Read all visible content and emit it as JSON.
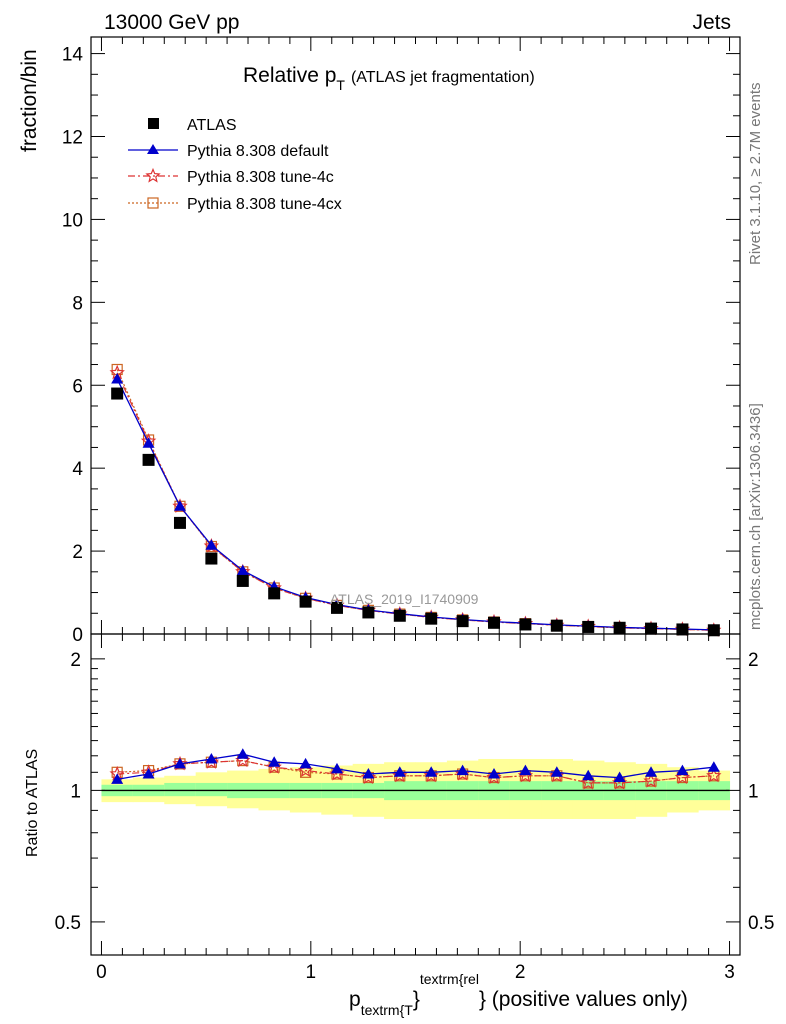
{
  "header": {
    "left": "13000 GeV pp",
    "right": "Jets"
  },
  "side_text": {
    "rivet": "Rivet 3.1.10, ≥ 2.7M events",
    "mcplots": "mcplots.cern.ch [arXiv:1306.3436]"
  },
  "watermark": "ATLAS_2019_I1740909",
  "colors": {
    "atlas": "#000000",
    "default": "#0000cc",
    "tune4c": "#dd3333",
    "tune4cx": "#cc6622",
    "band_inner": "#99ff99",
    "band_outer": "#ffff99"
  },
  "chart_data": [
    {
      "type": "scatter",
      "title": "Relative p",
      "title_sub": "T",
      "title_suffix": "(ATLAS jet fragmentation)",
      "ylabel": "fraction/bin",
      "xlim": [
        -0.05,
        3.05
      ],
      "ylim": [
        0,
        14.4
      ],
      "yticks": [
        0,
        2,
        4,
        6,
        8,
        10,
        12,
        14
      ],
      "ytick_labels": [
        "0",
        "2",
        "4",
        "6",
        "8",
        "10",
        "12",
        "14"
      ],
      "legend_position": "top-left",
      "x": [
        0.075,
        0.225,
        0.375,
        0.525,
        0.675,
        0.825,
        0.975,
        1.125,
        1.275,
        1.425,
        1.575,
        1.725,
        1.875,
        2.025,
        2.175,
        2.325,
        2.475,
        2.625,
        2.775,
        2.925
      ],
      "series": [
        {
          "name": "ATLAS",
          "marker": "square",
          "values": [
            5.8,
            4.2,
            2.68,
            1.82,
            1.28,
            0.98,
            0.78,
            0.63,
            0.52,
            0.44,
            0.37,
            0.31,
            0.27,
            0.23,
            0.2,
            0.17,
            0.15,
            0.13,
            0.11,
            0.09
          ]
        },
        {
          "name": "Pythia 8.308 default",
          "marker": "triangle",
          "values": [
            6.15,
            4.6,
            3.08,
            2.14,
            1.53,
            1.14,
            0.88,
            0.71,
            0.58,
            0.49,
            0.41,
            0.35,
            0.3,
            0.26,
            0.22,
            0.19,
            0.16,
            0.14,
            0.12,
            0.1
          ]
        },
        {
          "name": "Pythia 8.308 tune-4c",
          "marker": "star",
          "values": [
            6.3,
            4.65,
            3.08,
            2.12,
            1.5,
            1.11,
            0.86,
            0.69,
            0.57,
            0.48,
            0.4,
            0.34,
            0.29,
            0.25,
            0.21,
            0.18,
            0.15,
            0.13,
            0.11,
            0.09
          ]
        },
        {
          "name": "Pythia 8.308 tune-4cx",
          "marker": "open-square",
          "values": [
            6.38,
            4.68,
            3.08,
            2.11,
            1.5,
            1.11,
            0.86,
            0.69,
            0.57,
            0.48,
            0.4,
            0.34,
            0.29,
            0.25,
            0.21,
            0.18,
            0.15,
            0.13,
            0.11,
            0.09
          ]
        }
      ]
    },
    {
      "type": "scatter",
      "ylabel": "Ratio to ATLAS",
      "xlabel": "p",
      "xlabel_sub": "textrm{T",
      "xlabel_sup": "textrm{rel",
      "xlabel_tail": "} (positive values only)",
      "xlabel_brace": "}",
      "xlim": [
        -0.05,
        3.05
      ],
      "ylim": [
        0.42,
        2.28
      ],
      "log_y": true,
      "xticks": [
        0,
        1,
        2,
        3
      ],
      "xtick_labels": [
        "0",
        "1",
        "2",
        "3"
      ],
      "yticks": [
        0.5,
        1,
        2
      ],
      "ytick_labels": [
        "0.5",
        "1",
        "2"
      ],
      "x_edges": [
        0.0,
        0.15,
        0.3,
        0.45,
        0.6,
        0.75,
        0.9,
        1.05,
        1.2,
        1.35,
        1.5,
        1.65,
        1.8,
        1.95,
        2.1,
        2.25,
        2.4,
        2.55,
        2.7,
        2.85,
        3.0
      ],
      "band_inner": {
        "low": [
          0.97,
          0.97,
          0.97,
          0.97,
          0.96,
          0.96,
          0.96,
          0.96,
          0.96,
          0.95,
          0.95,
          0.95,
          0.95,
          0.95,
          0.95,
          0.95,
          0.95,
          0.95,
          0.95,
          0.95
        ],
        "high": [
          1.03,
          1.03,
          1.04,
          1.04,
          1.04,
          1.04,
          1.04,
          1.04,
          1.04,
          1.05,
          1.05,
          1.05,
          1.05,
          1.05,
          1.05,
          1.05,
          1.05,
          1.05,
          1.05,
          1.05
        ]
      },
      "band_outer": {
        "low": [
          0.94,
          0.94,
          0.93,
          0.92,
          0.91,
          0.9,
          0.89,
          0.88,
          0.87,
          0.86,
          0.86,
          0.86,
          0.86,
          0.86,
          0.86,
          0.86,
          0.86,
          0.87,
          0.89,
          0.9
        ],
        "high": [
          1.06,
          1.07,
          1.08,
          1.1,
          1.11,
          1.12,
          1.13,
          1.14,
          1.15,
          1.16,
          1.16,
          1.17,
          1.18,
          1.18,
          1.18,
          1.17,
          1.16,
          1.15,
          1.13,
          1.11
        ]
      },
      "reference_value": 1,
      "x": [
        0.075,
        0.225,
        0.375,
        0.525,
        0.675,
        0.825,
        0.975,
        1.125,
        1.275,
        1.425,
        1.575,
        1.725,
        1.875,
        2.025,
        2.175,
        2.325,
        2.475,
        2.625,
        2.775,
        2.925
      ],
      "series": [
        {
          "name": "Pythia 8.308 default",
          "marker": "triangle",
          "values": [
            1.06,
            1.09,
            1.15,
            1.18,
            1.21,
            1.16,
            1.15,
            1.12,
            1.09,
            1.1,
            1.1,
            1.11,
            1.09,
            1.11,
            1.1,
            1.08,
            1.07,
            1.1,
            1.11,
            1.13
          ]
        },
        {
          "name": "Pythia 8.308 tune-4c",
          "marker": "star",
          "values": [
            1.09,
            1.1,
            1.15,
            1.16,
            1.17,
            1.13,
            1.11,
            1.09,
            1.07,
            1.08,
            1.08,
            1.09,
            1.07,
            1.08,
            1.08,
            1.04,
            1.04,
            1.05,
            1.07,
            1.08
          ]
        },
        {
          "name": "Pythia 8.308 tune-4cx",
          "marker": "open-square",
          "values": [
            1.1,
            1.11,
            1.15,
            1.16,
            1.17,
            1.13,
            1.1,
            1.09,
            1.07,
            1.08,
            1.08,
            1.09,
            1.07,
            1.08,
            1.08,
            1.04,
            1.04,
            1.05,
            1.07,
            1.08
          ]
        }
      ]
    }
  ]
}
